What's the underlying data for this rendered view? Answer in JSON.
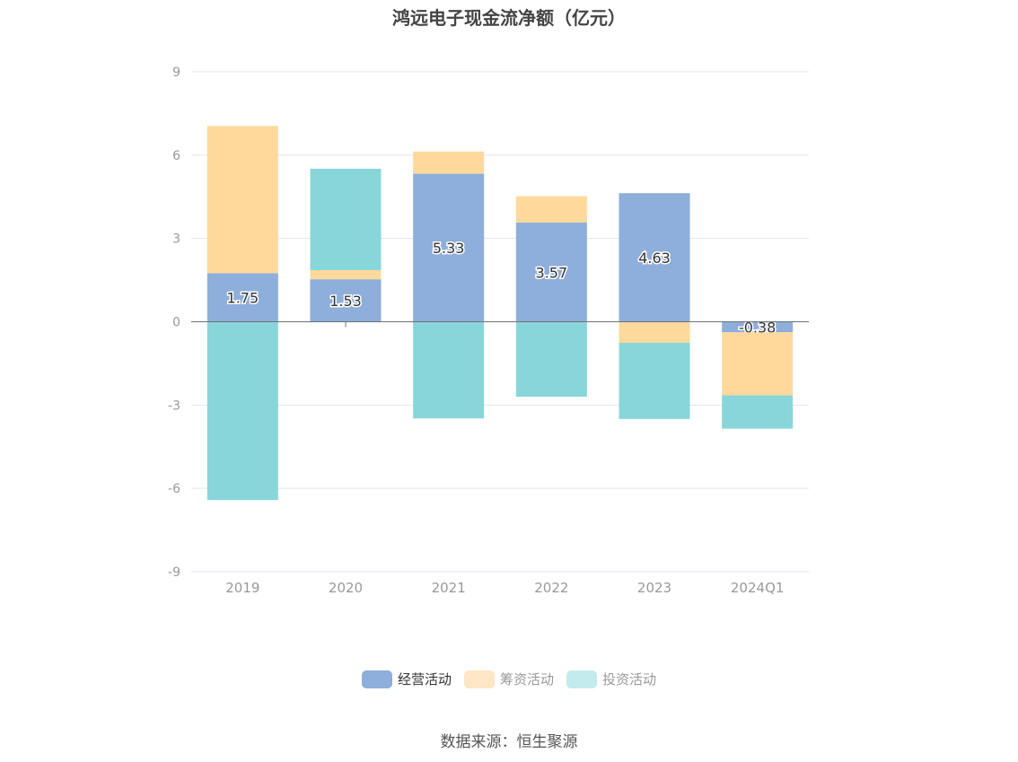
{
  "chart_data": {
    "type": "bar",
    "stacked": true,
    "title": "鸿远电子现金流净额（亿元）",
    "categories": [
      "2019",
      "2020",
      "2021",
      "2022",
      "2023",
      "2024Q1"
    ],
    "series": [
      {
        "name": "经营活动",
        "color": "#8eaedb",
        "values": [
          1.75,
          1.53,
          5.33,
          3.57,
          4.63,
          -0.38
        ],
        "show_labels": true
      },
      {
        "name": "筹资活动",
        "color": "#ffd99c",
        "values": [
          5.3,
          0.33,
          0.8,
          0.95,
          -0.76,
          -2.27
        ],
        "show_labels": false
      },
      {
        "name": "投资活动",
        "color": "#88d6d9",
        "values": [
          -6.42,
          3.65,
          -3.48,
          -2.7,
          -2.74,
          -1.2
        ],
        "show_labels": false
      }
    ],
    "ylim": [
      -9,
      9
    ],
    "yticks": [
      -9,
      -6,
      -3,
      0,
      3,
      6,
      9
    ],
    "legend_position": "bottom-center"
  },
  "legend": {
    "items": [
      {
        "label": "经营活动",
        "color": "#8eaedb"
      },
      {
        "label": "筹资活动",
        "color": "#ffe6c4"
      },
      {
        "label": "投资活动",
        "color": "#c3eaec"
      }
    ]
  },
  "source": "数据来源：恒生聚源"
}
